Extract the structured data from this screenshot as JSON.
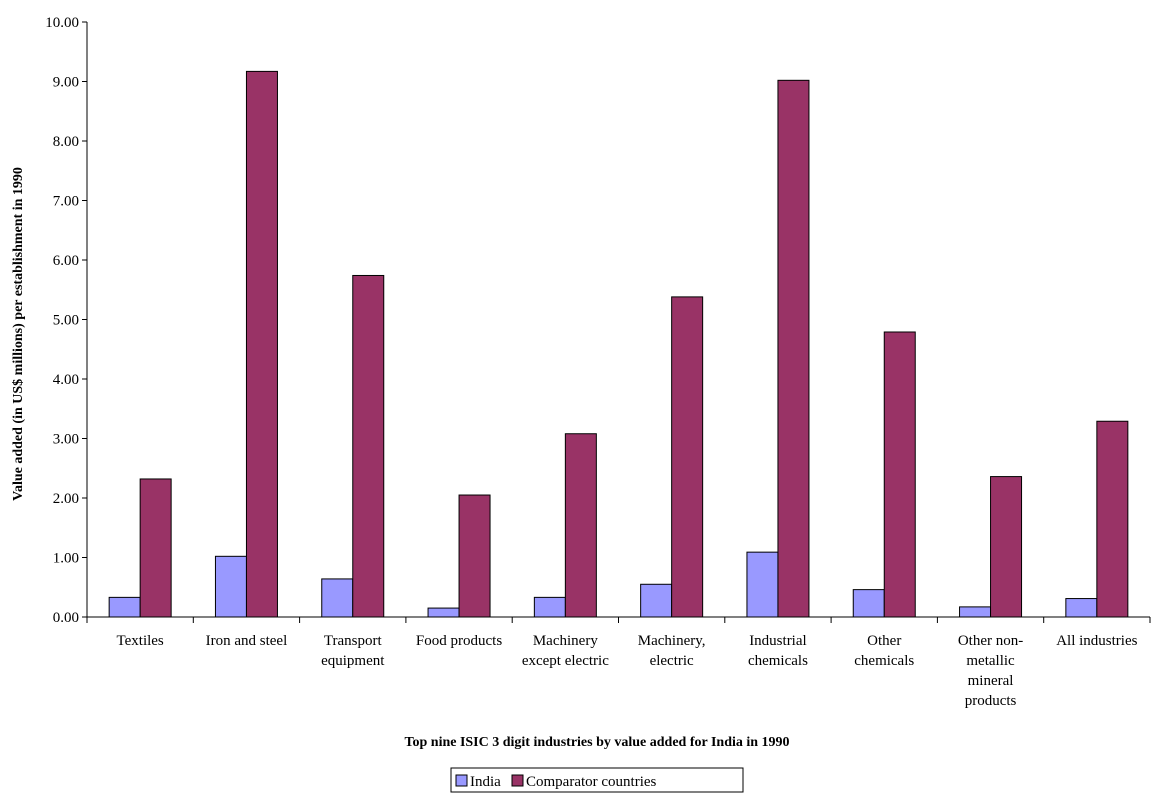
{
  "chart_data": {
    "type": "bar",
    "title": "",
    "xlabel": "Top nine ISIC 3 digit industries by value added for India in 1990",
    "ylabel": "Value added (in US$ millions) per establishment in 1990",
    "ylim": [
      0,
      10
    ],
    "yticks": [
      "0.00",
      "1.00",
      "2.00",
      "3.00",
      "4.00",
      "5.00",
      "6.00",
      "7.00",
      "8.00",
      "9.00",
      "10.00"
    ],
    "categories": [
      [
        "Textiles"
      ],
      [
        "Iron and steel"
      ],
      [
        "Transport",
        "equipment"
      ],
      [
        "Food products"
      ],
      [
        "Machinery",
        "except electric"
      ],
      [
        "Machinery,",
        "electric"
      ],
      [
        "Industrial",
        "chemicals"
      ],
      [
        "Other",
        "chemicals"
      ],
      [
        "Other non-",
        "metallic",
        "mineral",
        "products"
      ],
      [
        "All industries"
      ]
    ],
    "series": [
      {
        "name": "India",
        "color": "#9999ff",
        "values": [
          0.33,
          1.02,
          0.64,
          0.15,
          0.33,
          0.55,
          1.09,
          0.46,
          0.17,
          0.31
        ]
      },
      {
        "name": "Comparator countries",
        "color": "#993366",
        "values": [
          2.32,
          9.17,
          5.74,
          2.05,
          3.08,
          5.38,
          9.02,
          4.79,
          2.36,
          3.29
        ]
      }
    ],
    "grid": false,
    "legend": "bottom"
  }
}
